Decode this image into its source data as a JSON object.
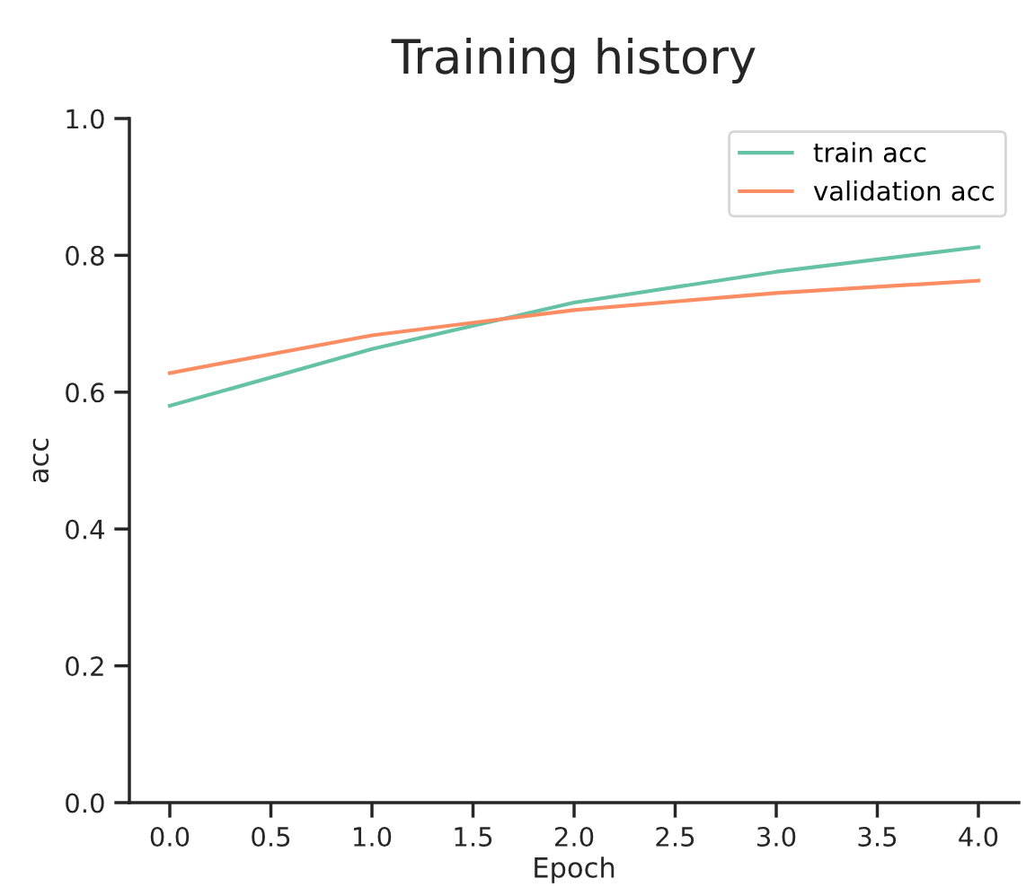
{
  "chart_data": {
    "type": "line",
    "title": "Training history",
    "xlabel": "Epoch",
    "ylabel": "acc",
    "x": [
      0,
      1,
      2,
      3,
      4
    ],
    "series": [
      {
        "name": "train acc",
        "color": "#66c2a5",
        "values": [
          0.58,
          0.663,
          0.731,
          0.776,
          0.812
        ]
      },
      {
        "name": "validation acc",
        "color": "#fc8d62",
        "values": [
          0.628,
          0.683,
          0.72,
          0.745,
          0.763
        ]
      }
    ],
    "xlim": [
      -0.2,
      4.2
    ],
    "xticks": [
      {
        "value": 0,
        "label": "0.0"
      },
      {
        "value": 0.5,
        "label": "0.5"
      },
      {
        "value": 1,
        "label": "1.0"
      },
      {
        "value": 1.5,
        "label": "1.5"
      },
      {
        "value": 2,
        "label": "2.0"
      },
      {
        "value": 2.5,
        "label": "2.5"
      },
      {
        "value": 3,
        "label": "3.0"
      },
      {
        "value": 3.5,
        "label": "3.5"
      },
      {
        "value": 4,
        "label": "4.0"
      }
    ],
    "ylim": [
      0,
      1
    ],
    "yticks": [
      {
        "value": 0,
        "label": "0.0"
      },
      {
        "value": 0.2,
        "label": "0.2"
      },
      {
        "value": 0.4,
        "label": "0.4"
      },
      {
        "value": 0.6,
        "label": "0.6"
      },
      {
        "value": 0.8,
        "label": "0.8"
      },
      {
        "value": 1,
        "label": "1.0"
      }
    ],
    "grid": false,
    "legend": "top right",
    "marker": "none",
    "line_style": "solid"
  }
}
